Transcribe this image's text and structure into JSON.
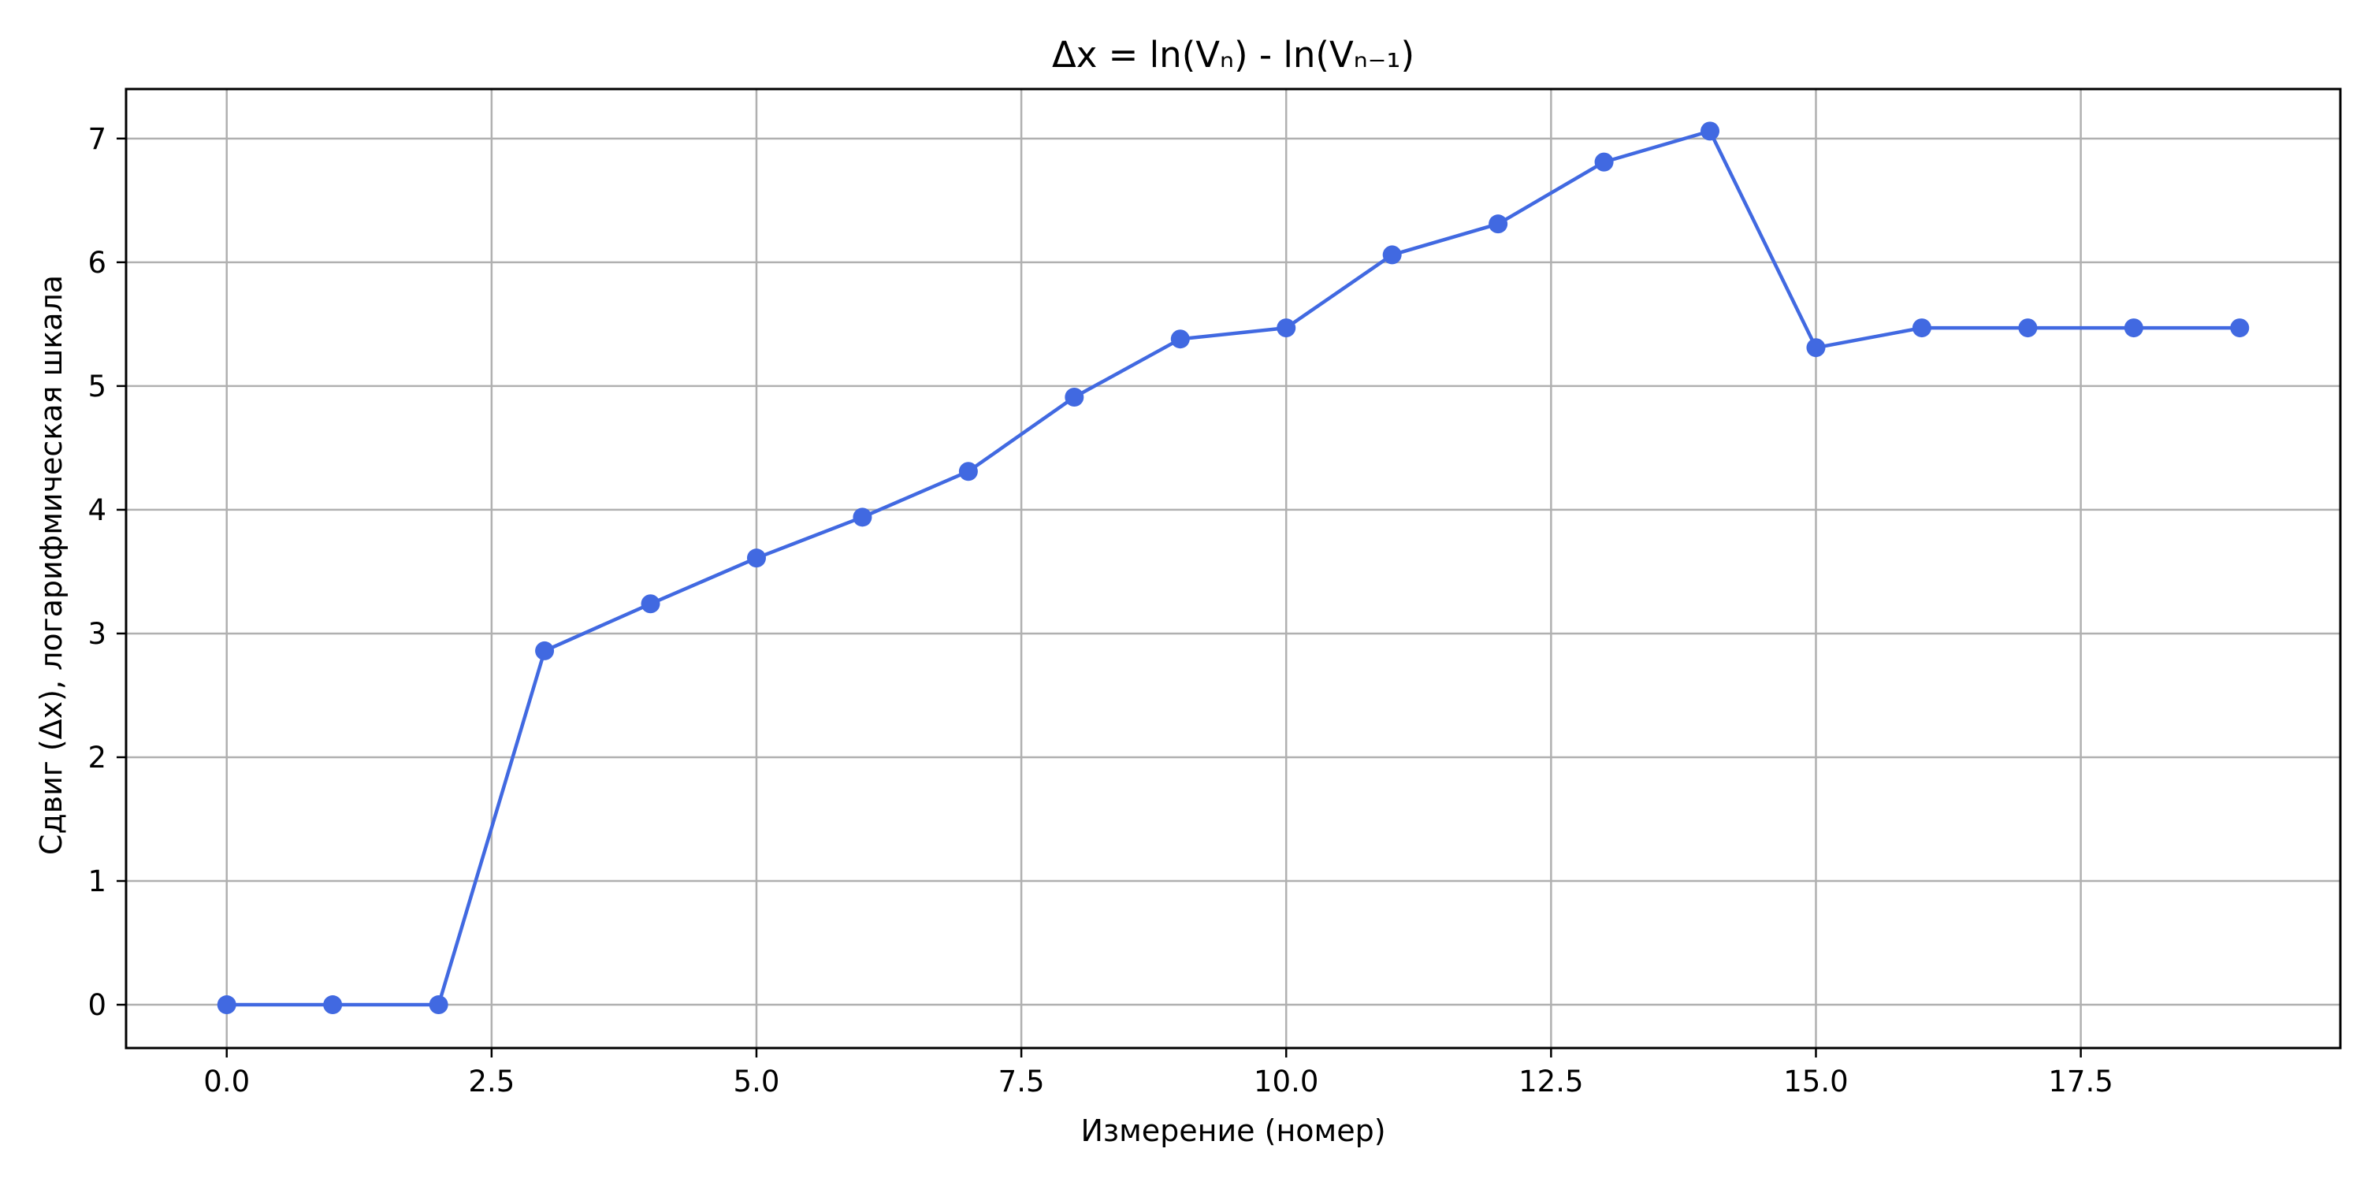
{
  "chart_data": {
    "type": "line",
    "title": "Δx = ln(Vₙ) - ln(Vₙ₋₁)",
    "xlabel": "Измерение (номер)",
    "ylabel": "Сдвиг (Δx), логарифмическая шкала",
    "xlim": [
      -0.95,
      19.95
    ],
    "ylim": [
      -0.35,
      7.4
    ],
    "xticks": [
      0.0,
      2.5,
      5.0,
      7.5,
      10.0,
      12.5,
      15.0,
      17.5
    ],
    "xtick_labels": [
      "0.0",
      "2.5",
      "5.0",
      "7.5",
      "10.0",
      "12.5",
      "15.0",
      "17.5"
    ],
    "yticks": [
      0,
      1,
      2,
      3,
      4,
      5,
      6,
      7
    ],
    "ytick_labels": [
      "0",
      "1",
      "2",
      "3",
      "4",
      "5",
      "6",
      "7"
    ],
    "grid": true,
    "series": [
      {
        "color": "#4169e1",
        "marker": "circle",
        "x": [
          0,
          1,
          2,
          3,
          4,
          5,
          6,
          7,
          8,
          9,
          10,
          11,
          12,
          13,
          14,
          15,
          16,
          17,
          18,
          19
        ],
        "y": [
          0,
          0,
          0,
          2.86,
          3.24,
          3.61,
          3.94,
          4.31,
          4.91,
          5.38,
          5.47,
          6.06,
          6.31,
          6.81,
          7.06,
          5.31,
          5.47,
          5.47,
          5.47,
          5.47
        ]
      }
    ]
  }
}
